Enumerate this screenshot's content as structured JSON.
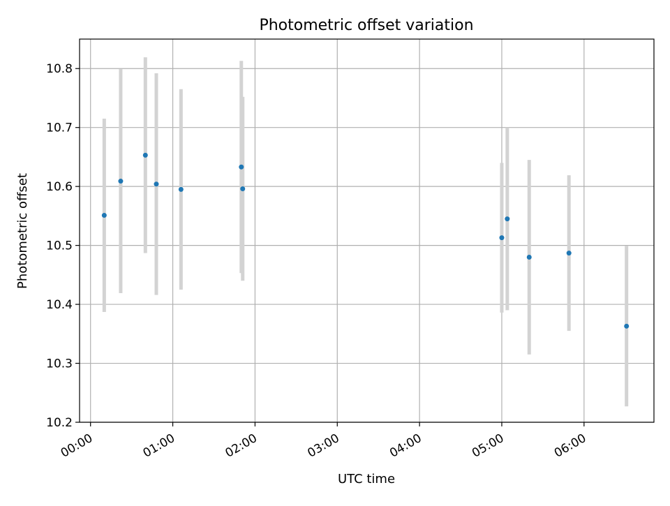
{
  "chart_data": {
    "type": "scatter",
    "title": "Photometric offset variation",
    "xlabel": "UTC time",
    "ylabel": "Photometric offset",
    "x_ticks": [
      "00:00",
      "01:00",
      "02:00",
      "03:00",
      "04:00",
      "05:00",
      "06:00"
    ],
    "y_ticks": [
      "10.2",
      "10.3",
      "10.4",
      "10.5",
      "10.6",
      "10.7",
      "10.8"
    ],
    "xlim": [
      "23:52",
      "06:51"
    ],
    "ylim": [
      10.2,
      10.85
    ],
    "grid": true,
    "marker_color": "#1f77b4",
    "errorbar_color": "#d3d3d3",
    "points": [
      {
        "x": "00:10",
        "y": 10.551,
        "err": 0.164
      },
      {
        "x": "00:22",
        "y": 10.609,
        "err": 0.19
      },
      {
        "x": "00:40",
        "y": 10.653,
        "err": 0.166
      },
      {
        "x": "00:48",
        "y": 10.604,
        "err": 0.188
      },
      {
        "x": "01:06",
        "y": 10.595,
        "err": 0.17
      },
      {
        "x": "01:50",
        "y": 10.633,
        "err": 0.18
      },
      {
        "x": "01:51",
        "y": 10.596,
        "err": 0.156
      },
      {
        "x": "05:00",
        "y": 10.513,
        "err": 0.127
      },
      {
        "x": "05:04",
        "y": 10.545,
        "err": 0.155
      },
      {
        "x": "05:20",
        "y": 10.48,
        "err": 0.165
      },
      {
        "x": "05:49",
        "y": 10.487,
        "err": 0.132
      },
      {
        "x": "06:31",
        "y": 10.363,
        "err": 0.136
      }
    ]
  }
}
